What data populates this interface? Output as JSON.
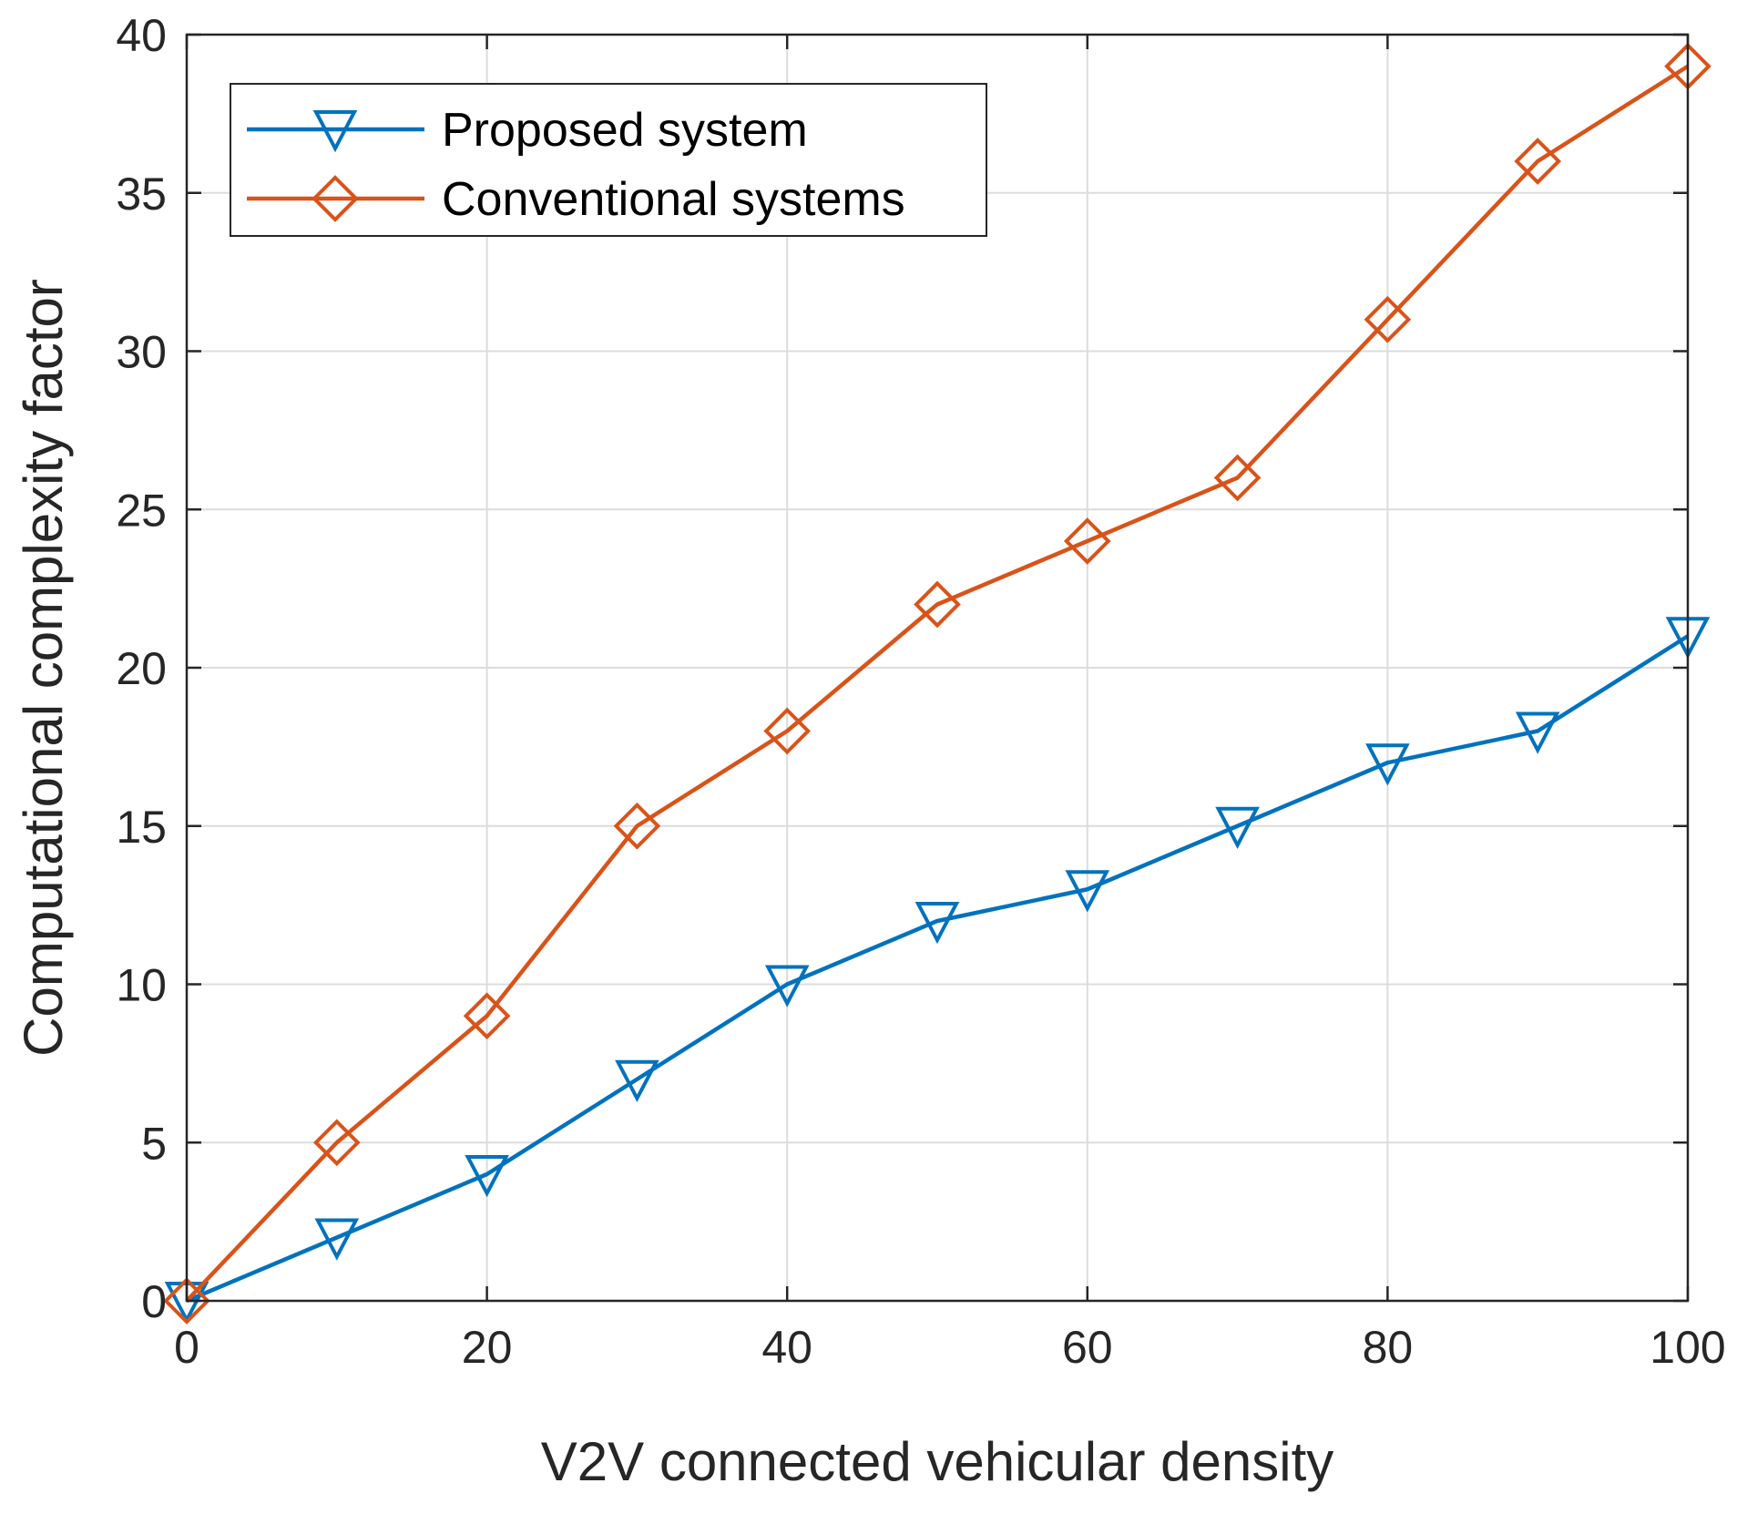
{
  "chart_data": {
    "type": "line",
    "title": "",
    "xlabel": "V2V connected vehicular density",
    "ylabel": "Computational complexity factor",
    "xlim": [
      0,
      100
    ],
    "ylim": [
      0,
      40
    ],
    "xticks": [
      0,
      20,
      40,
      60,
      80,
      100
    ],
    "yticks": [
      0,
      5,
      10,
      15,
      20,
      25,
      30,
      35,
      40
    ],
    "x": [
      0,
      10,
      20,
      30,
      40,
      50,
      60,
      70,
      80,
      90,
      100
    ],
    "grid": true,
    "legend_position": "top-left",
    "series": [
      {
        "name": "Proposed system",
        "color": "#0072BD",
        "marker": "triangle-down",
        "values": [
          0,
          2,
          4,
          7,
          10,
          12,
          13,
          15,
          17,
          18,
          21
        ]
      },
      {
        "name": "Conventional systems",
        "color": "#D95319",
        "marker": "diamond",
        "values": [
          0,
          5,
          9,
          15,
          18,
          22,
          24,
          26,
          31,
          36,
          39
        ]
      }
    ]
  }
}
